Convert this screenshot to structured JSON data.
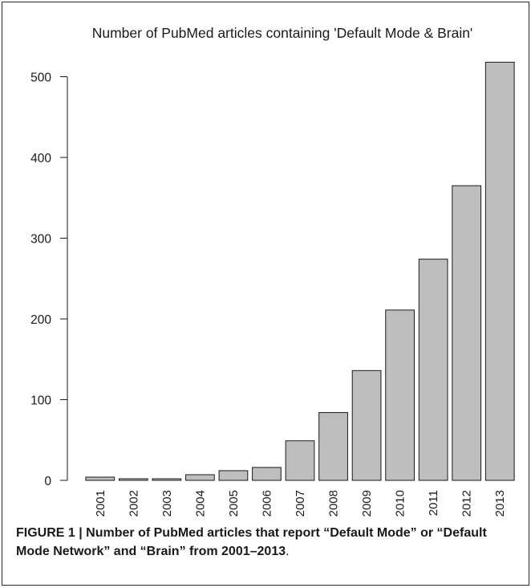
{
  "chart_data": {
    "type": "bar",
    "title": "Number of PubMed articles containing 'Default Mode & Brain'",
    "xlabel": "",
    "ylabel": "",
    "categories": [
      "2001",
      "2002",
      "2003",
      "2004",
      "2005",
      "2006",
      "2007",
      "2008",
      "2009",
      "2010",
      "2011",
      "2012",
      "2013"
    ],
    "values": [
      4,
      2,
      2,
      7,
      12,
      16,
      49,
      84,
      136,
      211,
      274,
      365,
      518
    ],
    "ylim": [
      0,
      530
    ],
    "yticks": [
      0,
      100,
      200,
      300,
      400,
      500
    ],
    "grid": false,
    "bar_color": "#bebebe",
    "bar_edge_color": "#1a1a1a"
  },
  "caption": {
    "figure_label": "FIGURE 1 |",
    "text": "Number of PubMed articles that report “Default Mode” or “Default Mode Network” and “Brain” from 2001–2013",
    "end_punct": "."
  }
}
